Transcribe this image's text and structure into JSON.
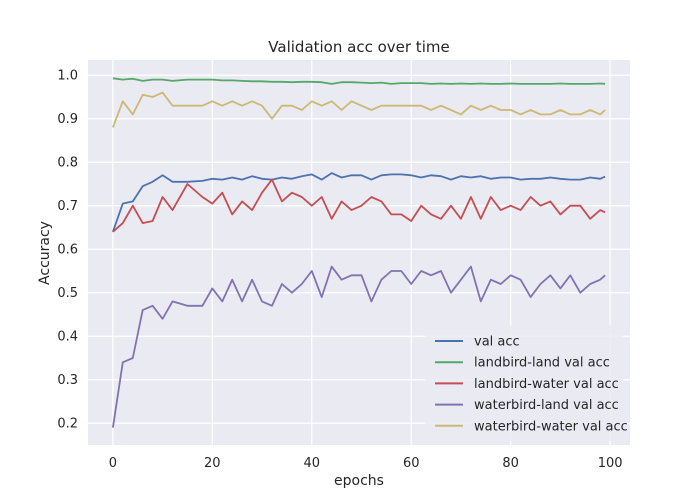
{
  "chart_data": {
    "type": "line",
    "title": "Validation acc over time",
    "xlabel": "epochs",
    "ylabel": "Accuracy",
    "xlim": [
      -5,
      104
    ],
    "ylim": [
      0.15,
      1.035
    ],
    "xticks": [
      "0",
      "20",
      "40",
      "60",
      "80",
      "100"
    ],
    "xtick_values": [
      0,
      20,
      40,
      60,
      80,
      100
    ],
    "yticks": [
      "0.2",
      "0.3",
      "0.4",
      "0.5",
      "0.6",
      "0.7",
      "0.8",
      "0.9",
      "1.0"
    ],
    "ytick_values": [
      0.2,
      0.3,
      0.4,
      0.5,
      0.6,
      0.7,
      0.8,
      0.9,
      1.0
    ],
    "grid": true,
    "legend_position": "lower-right",
    "series": [
      {
        "name": "val acc",
        "color": "#4c72b0",
        "x": [
          0,
          2,
          4,
          6,
          8,
          10,
          12,
          15,
          18,
          20,
          22,
          24,
          26,
          28,
          30,
          32,
          34,
          36,
          38,
          40,
          42,
          44,
          46,
          48,
          50,
          52,
          54,
          56,
          58,
          60,
          62,
          64,
          66,
          68,
          70,
          72,
          74,
          76,
          78,
          80,
          82,
          84,
          86,
          88,
          90,
          92,
          94,
          96,
          98,
          99
        ],
        "y": [
          0.64,
          0.705,
          0.71,
          0.745,
          0.755,
          0.77,
          0.755,
          0.755,
          0.757,
          0.762,
          0.76,
          0.765,
          0.76,
          0.768,
          0.762,
          0.76,
          0.765,
          0.762,
          0.768,
          0.772,
          0.76,
          0.775,
          0.765,
          0.77,
          0.77,
          0.76,
          0.77,
          0.772,
          0.772,
          0.77,
          0.765,
          0.77,
          0.768,
          0.76,
          0.768,
          0.765,
          0.768,
          0.762,
          0.765,
          0.765,
          0.76,
          0.762,
          0.762,
          0.765,
          0.762,
          0.76,
          0.76,
          0.765,
          0.762,
          0.767
        ]
      },
      {
        "name": "landbird-land val acc",
        "color": "#55a868",
        "x": [
          0,
          2,
          4,
          6,
          8,
          10,
          12,
          15,
          18,
          20,
          22,
          24,
          26,
          28,
          30,
          32,
          34,
          36,
          38,
          40,
          42,
          44,
          46,
          48,
          50,
          52,
          54,
          56,
          58,
          60,
          62,
          64,
          66,
          68,
          70,
          72,
          74,
          76,
          78,
          80,
          82,
          84,
          86,
          88,
          90,
          92,
          94,
          96,
          98,
          99
        ],
        "y": [
          0.993,
          0.99,
          0.992,
          0.987,
          0.99,
          0.99,
          0.987,
          0.99,
          0.99,
          0.99,
          0.988,
          0.988,
          0.987,
          0.986,
          0.986,
          0.985,
          0.985,
          0.984,
          0.985,
          0.985,
          0.984,
          0.98,
          0.984,
          0.984,
          0.983,
          0.982,
          0.983,
          0.98,
          0.982,
          0.982,
          0.982,
          0.98,
          0.981,
          0.98,
          0.981,
          0.98,
          0.981,
          0.98,
          0.98,
          0.981,
          0.98,
          0.98,
          0.98,
          0.98,
          0.981,
          0.98,
          0.98,
          0.98,
          0.981,
          0.98
        ]
      },
      {
        "name": "landbird-water val acc",
        "color": "#c44e52",
        "x": [
          0,
          2,
          4,
          6,
          8,
          10,
          12,
          15,
          18,
          20,
          22,
          24,
          26,
          28,
          30,
          32,
          34,
          36,
          38,
          40,
          42,
          44,
          46,
          48,
          50,
          52,
          54,
          56,
          58,
          60,
          62,
          64,
          66,
          68,
          70,
          72,
          74,
          76,
          78,
          80,
          82,
          84,
          86,
          88,
          90,
          92,
          94,
          96,
          98,
          99
        ],
        "y": [
          0.64,
          0.66,
          0.7,
          0.66,
          0.665,
          0.72,
          0.69,
          0.75,
          0.72,
          0.705,
          0.73,
          0.68,
          0.71,
          0.69,
          0.73,
          0.76,
          0.71,
          0.73,
          0.72,
          0.7,
          0.72,
          0.67,
          0.71,
          0.69,
          0.7,
          0.72,
          0.71,
          0.68,
          0.68,
          0.665,
          0.7,
          0.68,
          0.67,
          0.7,
          0.67,
          0.72,
          0.67,
          0.72,
          0.69,
          0.7,
          0.69,
          0.72,
          0.7,
          0.71,
          0.68,
          0.7,
          0.7,
          0.67,
          0.69,
          0.685
        ]
      },
      {
        "name": "waterbird-land val acc",
        "color": "#8172b2",
        "x": [
          0,
          2,
          4,
          6,
          8,
          10,
          12,
          15,
          18,
          20,
          22,
          24,
          26,
          28,
          30,
          32,
          34,
          36,
          38,
          40,
          42,
          44,
          46,
          48,
          50,
          52,
          54,
          56,
          58,
          60,
          62,
          64,
          66,
          68,
          70,
          72,
          74,
          76,
          78,
          80,
          82,
          84,
          86,
          88,
          90,
          92,
          94,
          96,
          98,
          99
        ],
        "y": [
          0.19,
          0.34,
          0.35,
          0.46,
          0.47,
          0.44,
          0.48,
          0.47,
          0.47,
          0.51,
          0.48,
          0.53,
          0.48,
          0.53,
          0.48,
          0.47,
          0.52,
          0.5,
          0.52,
          0.55,
          0.49,
          0.56,
          0.53,
          0.54,
          0.54,
          0.48,
          0.53,
          0.55,
          0.55,
          0.52,
          0.55,
          0.54,
          0.55,
          0.5,
          0.53,
          0.56,
          0.48,
          0.53,
          0.52,
          0.54,
          0.53,
          0.49,
          0.52,
          0.54,
          0.51,
          0.54,
          0.5,
          0.52,
          0.53,
          0.54
        ]
      },
      {
        "name": "waterbird-water val acc",
        "color": "#ccb974",
        "x": [
          0,
          2,
          4,
          6,
          8,
          10,
          12,
          15,
          18,
          20,
          22,
          24,
          26,
          28,
          30,
          32,
          34,
          36,
          38,
          40,
          42,
          44,
          46,
          48,
          50,
          52,
          54,
          56,
          58,
          60,
          62,
          64,
          66,
          68,
          70,
          72,
          74,
          76,
          78,
          80,
          82,
          84,
          86,
          88,
          90,
          92,
          94,
          96,
          98,
          99
        ],
        "y": [
          0.88,
          0.94,
          0.91,
          0.955,
          0.95,
          0.96,
          0.93,
          0.93,
          0.93,
          0.94,
          0.93,
          0.94,
          0.93,
          0.94,
          0.93,
          0.9,
          0.93,
          0.93,
          0.92,
          0.94,
          0.93,
          0.94,
          0.92,
          0.94,
          0.93,
          0.92,
          0.93,
          0.93,
          0.93,
          0.93,
          0.93,
          0.92,
          0.93,
          0.92,
          0.91,
          0.93,
          0.92,
          0.93,
          0.92,
          0.92,
          0.91,
          0.92,
          0.91,
          0.91,
          0.92,
          0.91,
          0.91,
          0.92,
          0.91,
          0.92
        ]
      }
    ]
  }
}
